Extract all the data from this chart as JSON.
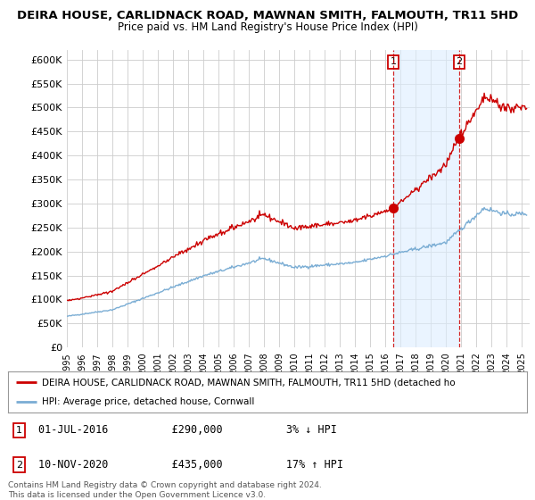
{
  "title": "DEIRA HOUSE, CARLIDNACK ROAD, MAWNAN SMITH, FALMOUTH, TR11 5HD",
  "subtitle": "Price paid vs. HM Land Registry's House Price Index (HPI)",
  "hpi_label": "HPI: Average price, detached house, Cornwall",
  "property_label": "DEIRA HOUSE, CARLIDNACK ROAD, MAWNAN SMITH, FALMOUTH, TR11 5HD (detached ho",
  "sale1_date": "01-JUL-2016",
  "sale1_price": "£290,000",
  "sale1_hpi": "3% ↓ HPI",
  "sale1_year": 2016.5,
  "sale1_value": 290000,
  "sale2_date": "10-NOV-2020",
  "sale2_price": "£435,000",
  "sale2_hpi": "17% ↑ HPI",
  "sale2_year": 2020.85,
  "sale2_value": 435000,
  "hpi_color": "#7aadd4",
  "property_color": "#cc0000",
  "dashed_color": "#cc0000",
  "shade_color": "#ddeeff",
  "background_color": "#ffffff",
  "grid_color": "#cccccc",
  "ylim": [
    0,
    620000
  ],
  "xlim_start": 1995,
  "xlim_end": 2025.5,
  "footer": "Contains HM Land Registry data © Crown copyright and database right 2024.\nThis data is licensed under the Open Government Licence v3.0.",
  "yticks": [
    0,
    50000,
    100000,
    150000,
    200000,
    250000,
    300000,
    350000,
    400000,
    450000,
    500000,
    550000,
    600000
  ],
  "ytick_labels": [
    "£0",
    "£50K",
    "£100K",
    "£150K",
    "£200K",
    "£250K",
    "£300K",
    "£350K",
    "£400K",
    "£450K",
    "£500K",
    "£550K",
    "£600K"
  ]
}
